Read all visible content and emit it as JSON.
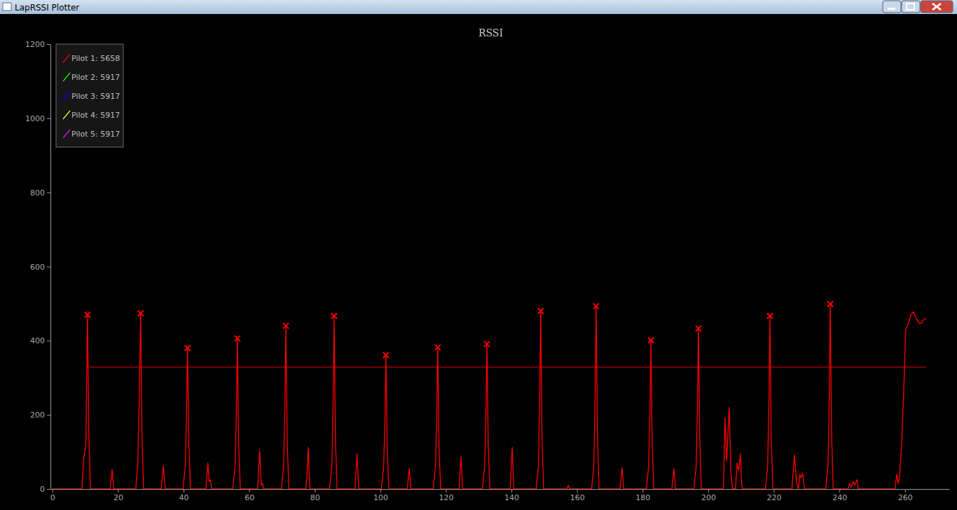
{
  "chart_data": {
    "type": "line",
    "window_title": "LapRSSI Plotter",
    "title": "RSSI",
    "legend": "upper left",
    "xlim": [
      -0.6,
      273.5
    ],
    "xticks": [
      0,
      20,
      40,
      60,
      80,
      100,
      120,
      140,
      160,
      180,
      200,
      220,
      240,
      260
    ],
    "ylim": [
      0,
      1200
    ],
    "yticks": [
      0,
      200,
      400,
      600,
      800,
      1000,
      1200
    ],
    "series": [
      {
        "name": "Pilot 1: 5658",
        "color": "#ff0000",
        "type": "line",
        "x": [
          0,
          9.0,
          9.5,
          10.2,
          10.7,
          11.1,
          11.6,
          17.6,
          18.2,
          18.7,
          25.4,
          26.0,
          26.5,
          26.9,
          27.3,
          27.8,
          33.2,
          33.8,
          34.4,
          39.8,
          40.5,
          40.9,
          41.2,
          41.6,
          42.1,
          46.8,
          47.4,
          47.8,
          48.2,
          48.6,
          55.0,
          55.7,
          56.1,
          56.4,
          56.8,
          57.3,
          62.6,
          63.2,
          63.7,
          64.1,
          64.5,
          69.8,
          70.5,
          70.9,
          71.2,
          71.6,
          72.1,
          77.2,
          77.6,
          78.0,
          78.5,
          84.5,
          85.2,
          85.6,
          85.9,
          86.3,
          86.8,
          92.3,
          92.9,
          93.4,
          100.3,
          101.0,
          101.4,
          101.7,
          102.1,
          102.6,
          108.2,
          108.8,
          109.3,
          116.1,
          116.8,
          117.2,
          117.5,
          117.9,
          118.4,
          124.0,
          124.6,
          125.1,
          131.1,
          131.8,
          132.2,
          132.5,
          132.9,
          133.4,
          139.6,
          140.2,
          140.7,
          147.5,
          148.2,
          148.6,
          148.9,
          149.3,
          149.8,
          156.8,
          157.3,
          157.8,
          164.4,
          165.1,
          165.5,
          165.8,
          166.2,
          166.7,
          173.1,
          173.7,
          174.2,
          181.1,
          181.8,
          182.2,
          182.5,
          182.9,
          183.4,
          188.9,
          189.5,
          190.0,
          195.6,
          196.3,
          196.7,
          197.0,
          197.4,
          197.9,
          204.6,
          205.1,
          205.6,
          206.0,
          206.4,
          206.9,
          207.4,
          208.3,
          208.8,
          209.3,
          209.8,
          210.2,
          210.6,
          217.4,
          218.1,
          218.5,
          218.8,
          219.2,
          219.7,
          225.5,
          226.3,
          226.9,
          227.5,
          227.9,
          228.3,
          228.8,
          229.3,
          235.8,
          236.5,
          236.9,
          237.2,
          237.6,
          238.1,
          242.6,
          243.1,
          243.6,
          244.2,
          244.6,
          245.3,
          245.8,
          256.9,
          257.5,
          257.9,
          258.3,
          258.9,
          259.6,
          260.2,
          261.0,
          261.8,
          262.6,
          263.4,
          264.3,
          265.0,
          265.8,
          266.5
        ],
        "values": [
          0,
          0,
          80,
          120,
          470,
          150,
          0,
          0,
          53,
          0,
          0,
          60,
          250,
          474,
          150,
          0,
          0,
          63,
          0,
          0,
          60,
          200,
          380,
          120,
          0,
          0,
          70,
          20,
          25,
          0,
          0,
          60,
          200,
          406,
          120,
          0,
          0,
          103,
          10,
          15,
          0,
          0,
          60,
          220,
          440,
          130,
          0,
          0,
          30,
          112,
          0,
          0,
          60,
          230,
          467,
          140,
          0,
          0,
          95,
          0,
          0,
          60,
          180,
          361,
          110,
          0,
          0,
          55,
          0,
          0,
          60,
          190,
          382,
          110,
          0,
          0,
          87,
          0,
          0,
          60,
          200,
          391,
          120,
          0,
          0,
          112,
          0,
          0,
          60,
          240,
          480,
          140,
          0,
          0,
          10,
          0,
          0,
          60,
          250,
          493,
          150,
          0,
          0,
          58,
          0,
          0,
          60,
          200,
          401,
          120,
          0,
          0,
          54,
          0,
          0,
          60,
          220,
          433,
          130,
          0,
          0,
          192,
          75,
          150,
          220,
          40,
          0,
          0,
          70,
          50,
          95,
          10,
          0,
          0,
          60,
          230,
          467,
          140,
          0,
          0,
          92,
          20,
          0,
          40,
          30,
          42,
          0,
          0,
          60,
          250,
          499,
          150,
          0,
          0,
          15,
          5,
          20,
          10,
          25,
          0,
          0,
          40,
          15,
          30,
          110,
          260,
          430,
          445,
          470,
          478,
          460,
          447,
          447,
          458,
          460
        ]
      },
      {
        "name": "Pilot 2: 5917",
        "color": "#00ff00",
        "type": "line",
        "x": [],
        "values": []
      },
      {
        "name": "Pilot 3: 5917",
        "color": "#0000ff",
        "type": "line",
        "x": [],
        "values": []
      },
      {
        "name": "Pilot 4: 5917",
        "color": "#ffff00",
        "type": "line",
        "x": [],
        "values": []
      },
      {
        "name": "Pilot 5: 5917",
        "color": "#ff00ff",
        "type": "line",
        "x": [],
        "values": []
      }
    ],
    "peaks": {
      "type": "scatter",
      "marker": "x",
      "color": "#ff0000",
      "x": [
        10.7,
        26.9,
        41.2,
        56.4,
        71.2,
        85.9,
        101.7,
        117.5,
        132.5,
        148.9,
        165.8,
        182.5,
        197.0,
        218.8,
        237.2
      ],
      "values": [
        470,
        474,
        380,
        406,
        440,
        467,
        361,
        382,
        391,
        480,
        493,
        401,
        433,
        467,
        499
      ]
    },
    "threshold": {
      "color": "#a00000",
      "value": 329,
      "x": [
        11.3,
        266.5
      ]
    }
  }
}
